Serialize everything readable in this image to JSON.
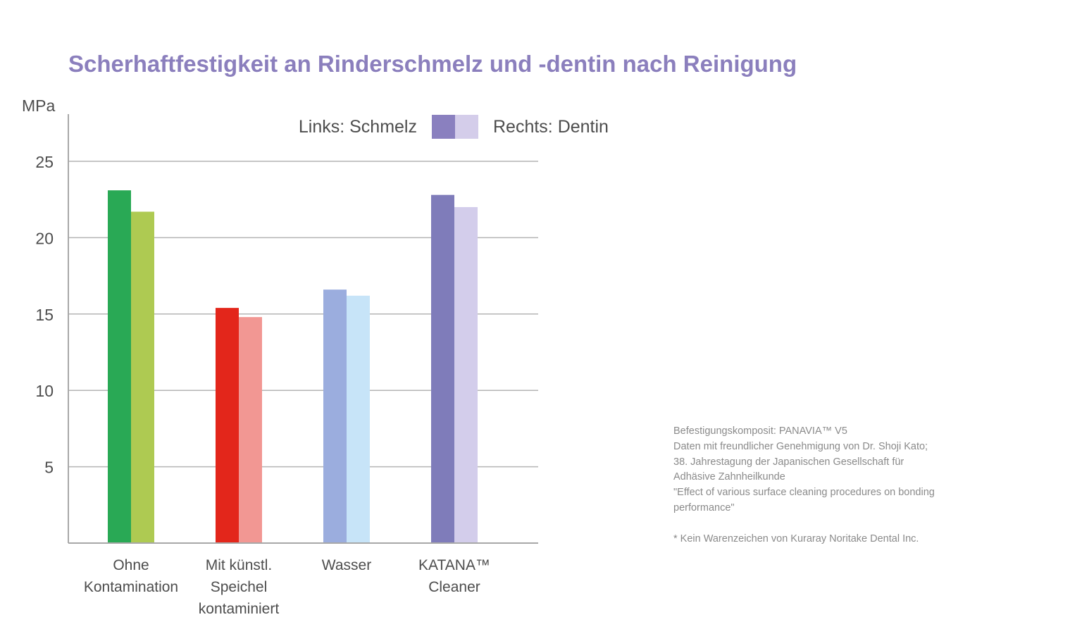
{
  "colors": {
    "title": "#8b7fbd",
    "axis": "#a8a8a8",
    "grid": "#b4b4b4",
    "legend_left": "#8a80bf",
    "legend_right": "#d4cdea"
  },
  "chart_data": {
    "type": "bar",
    "title": "Scherhaftfestigkeit an Rinderschmelz und -dentin nach Reinigung",
    "ylabel": "MPa",
    "ylim": [
      0,
      28
    ],
    "yticks": [
      5,
      10,
      15,
      20,
      25
    ],
    "grid": true,
    "legend": {
      "placement": "top-center",
      "left_label": "Links: Schmelz",
      "right_label": "Rechts: Dentin"
    },
    "categories": [
      {
        "lines": [
          "Ohne",
          "Kontamination"
        ],
        "schmelz": 23.1,
        "dentin": 21.7,
        "color_schmelz": "#29a955",
        "color_dentin": "#aeca52"
      },
      {
        "lines": [
          "Mit künstl.",
          "Speichel",
          "kontaminiert"
        ],
        "schmelz": 15.4,
        "dentin": 14.8,
        "color_schmelz": "#e3261b",
        "color_dentin": "#f29793"
      },
      {
        "lines": [
          "Wasser"
        ],
        "schmelz": 16.6,
        "dentin": 16.2,
        "color_schmelz": "#9badde",
        "color_dentin": "#c7e4f8"
      },
      {
        "lines": [
          "KATANA™",
          "Cleaner"
        ],
        "schmelz": 22.8,
        "dentin": 22.0,
        "color_schmelz": "#7f7cba",
        "color_dentin": "#d3cdeb"
      }
    ],
    "series": [
      {
        "name": "Schmelz"
      },
      {
        "name": "Dentin"
      }
    ]
  },
  "notes": {
    "lines": [
      "Befestigungskomposit: PANAVIA™ V5",
      "Daten mit freundlicher Genehmigung von Dr. Shoji Kato;",
      "38. Jahrestagung der Japanischen Gesellschaft für",
      "Adhäsive Zahnheilkunde",
      "\"Effect of various surface cleaning procedures on bonding",
      "performance\"",
      "",
      "* Kein Warenzeichen von Kuraray Noritake Dental Inc."
    ]
  }
}
